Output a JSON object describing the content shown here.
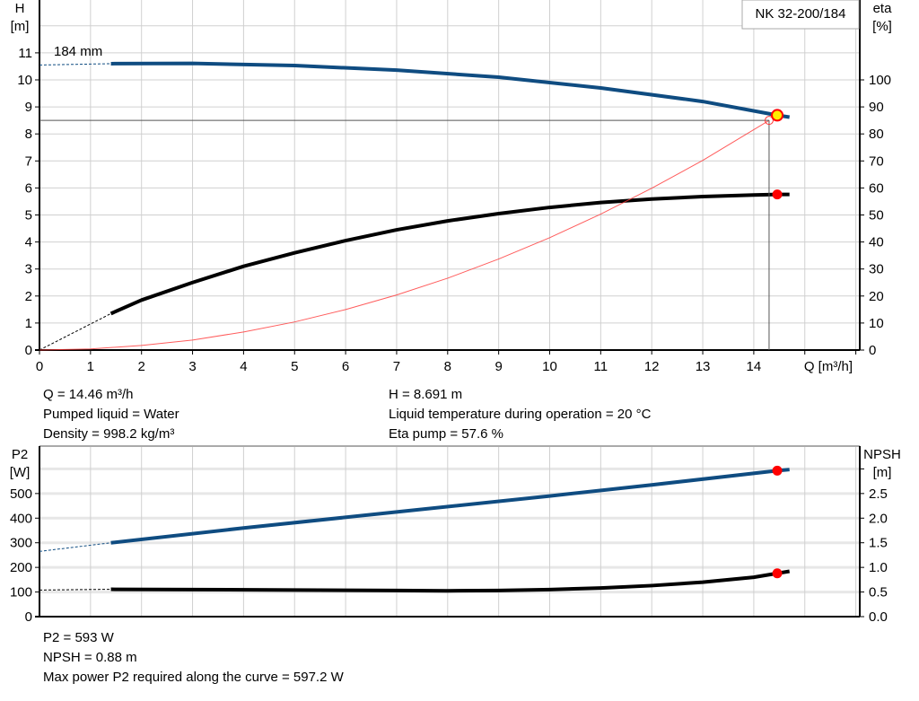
{
  "chart_data": [
    {
      "type": "line",
      "title": "NK 32-200/184",
      "impeller_label": "184 mm",
      "xlabel": "Q [m³/h]",
      "ylabel_left": [
        "H",
        "[m]"
      ],
      "ylabel_right": [
        "eta",
        "[%]"
      ],
      "xlim": [
        0,
        16
      ],
      "ylim_left": [
        0,
        13
      ],
      "ylim_right": [
        0,
        130
      ],
      "x_ticks": [
        "0",
        "1",
        "2",
        "3",
        "4",
        "5",
        "6",
        "7",
        "8",
        "9",
        "10",
        "11",
        "12",
        "13",
        "14"
      ],
      "y_left_ticks": [
        "0",
        "1",
        "2",
        "3",
        "4",
        "5",
        "6",
        "7",
        "8",
        "9",
        "10",
        "11"
      ],
      "y_right_ticks": [
        "0",
        "10",
        "20",
        "30",
        "40",
        "50",
        "60",
        "70",
        "80",
        "90",
        "100"
      ],
      "grid": true,
      "series": [
        {
          "name": "H",
          "axis": "left",
          "color": "#0f4c81",
          "dashed_start": [
            [
              0,
              10.55
            ],
            [
              1.4,
              10.6
            ]
          ],
          "x": [
            1.4,
            3,
            5,
            7,
            9,
            11,
            13,
            14.46,
            14.7
          ],
          "y": [
            10.6,
            10.61,
            10.53,
            10.36,
            10.1,
            9.7,
            9.2,
            8.691,
            8.62
          ]
        },
        {
          "name": "eta",
          "axis": "right",
          "color": "#000000",
          "dashed_start": [
            [
              0,
              0
            ],
            [
              1.4,
              13.5
            ]
          ],
          "x": [
            1.4,
            2,
            3,
            4,
            5,
            6,
            7,
            8,
            9,
            10,
            11,
            12,
            13,
            14,
            14.46,
            14.7
          ],
          "y": [
            13.5,
            18.5,
            25,
            31,
            36,
            40.5,
            44.5,
            47.8,
            50.5,
            52.8,
            54.6,
            55.9,
            56.8,
            57.4,
            57.6,
            57.6
          ]
        },
        {
          "name": "system curve",
          "axis": "left",
          "color": "#ff3333",
          "x": [
            0,
            1,
            2,
            3,
            4,
            5,
            6,
            7,
            8,
            9,
            10,
            11,
            12,
            13,
            14.3
          ],
          "y": [
            0,
            0.04,
            0.17,
            0.37,
            0.67,
            1.04,
            1.5,
            2.04,
            2.66,
            3.37,
            4.16,
            5.03,
            5.99,
            7.02,
            8.5
          ]
        }
      ],
      "operating_point": {
        "Q": 14.46,
        "H": 8.691,
        "eta": 57.6
      },
      "required_point": {
        "Q": 14.3,
        "H": 8.5
      }
    },
    {
      "type": "line",
      "ylabel_left": [
        "P2",
        "[W]"
      ],
      "ylabel_right": [
        "NPSH",
        "[m]"
      ],
      "xlim": [
        0,
        16
      ],
      "ylim_left": [
        0,
        700
      ],
      "ylim_right": [
        0,
        3.5
      ],
      "y_left_ticks": [
        "0",
        "100",
        "200",
        "300",
        "400",
        "500"
      ],
      "y_right_ticks": [
        "0.0",
        "0.5",
        "1.0",
        "1.5",
        "2.0",
        "2.5"
      ],
      "grid": true,
      "series": [
        {
          "name": "P2",
          "axis": "left",
          "color": "#0f4c81",
          "dashed_start": [
            [
              0,
              265
            ],
            [
              1.4,
              300
            ]
          ],
          "x": [
            1.4,
            4,
            7,
            10,
            12,
            14.46,
            14.7
          ],
          "y": [
            300,
            360,
            425,
            490,
            535,
            593,
            597.2
          ]
        },
        {
          "name": "NPSH",
          "axis": "right",
          "color": "#000000",
          "dashed_start": [
            [
              0,
              0.54
            ],
            [
              1.4,
              0.555
            ]
          ],
          "x": [
            1.4,
            3,
            5,
            7,
            8,
            9,
            10,
            11,
            12,
            13,
            14,
            14.46,
            14.7
          ],
          "y": [
            0.555,
            0.55,
            0.54,
            0.53,
            0.525,
            0.53,
            0.55,
            0.58,
            0.63,
            0.7,
            0.8,
            0.88,
            0.92
          ]
        }
      ],
      "operating_point": {
        "Q": 14.46,
        "P2": 593,
        "NPSH": 0.88
      }
    }
  ],
  "info_top": {
    "left": [
      "Q = 14.46 m³/h",
      "Pumped liquid = Water",
      "Density = 998.2 kg/m³"
    ],
    "right": [
      "H = 8.691 m",
      "Liquid temperature during operation = 20 °C",
      "Eta pump = 57.6 %"
    ]
  },
  "info_bottom": [
    "P2 = 593 W",
    "NPSH = 0.88 m",
    "Max power P2 required along the curve = 597.2 W"
  ],
  "colors": {
    "head": "#0f4c81",
    "efficiency": "#000000",
    "system": "#ff3333",
    "point": "#ff0000",
    "op_point": "#ffee00",
    "grid": "#d0d0d0"
  }
}
